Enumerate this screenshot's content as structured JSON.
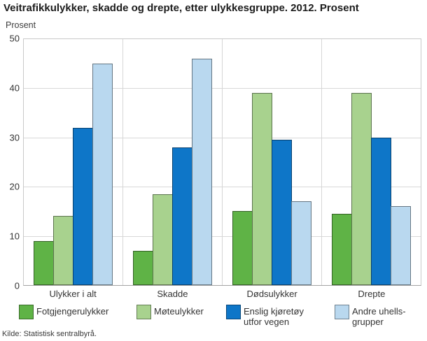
{
  "title": "Veitrafikkulykker, skadde og drepte, etter ulykkesgruppe. 2012. Prosent",
  "y_axis_title": "Prosent",
  "source": "Kilde: Statistisk sentralbyrå.",
  "chart_data": {
    "type": "bar",
    "title": "Veitrafikkulykker, skadde og drepte, etter ulykkesgruppe. 2012. Prosent",
    "xlabel": "",
    "ylabel": "Prosent",
    "ylim": [
      0,
      50
    ],
    "yticks": [
      0,
      10,
      20,
      30,
      40,
      50
    ],
    "grid": true,
    "legend_position": "bottom",
    "categories": [
      "Ulykker i alt",
      "Skadde",
      "Dødsulykker",
      "Drepte"
    ],
    "series": [
      {
        "name": "Fotgjengerulykker",
        "legend_label": "Fotgjengerulykker",
        "color": "#5fb346",
        "values": [
          9,
          7,
          15,
          14.5
        ]
      },
      {
        "name": "Møteulykker",
        "legend_label": "Møteulykker",
        "color": "#a8d28e",
        "values": [
          14,
          18.5,
          39,
          39
        ]
      },
      {
        "name": "Enslig kjøretøy utfor vegen",
        "legend_label": "Enslig kjøretøy\nutfor vegen",
        "color": "#0e76c8",
        "values": [
          32,
          28,
          29.5,
          30
        ]
      },
      {
        "name": "Andre uhellsgrupper",
        "legend_label": "Andre uhells-\ngrupper",
        "color": "#b9d8ef",
        "values": [
          45,
          46,
          17,
          16
        ]
      }
    ],
    "legend_x_positions": [
      27,
      195,
      323,
      478
    ]
  }
}
